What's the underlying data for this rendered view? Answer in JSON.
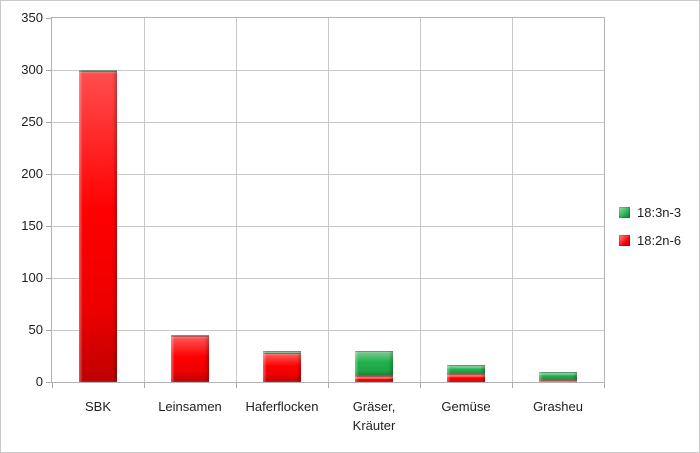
{
  "chart_data": {
    "type": "bar",
    "stacked": true,
    "categories": [
      "SBK",
      "Leinsamen",
      "Haferflocken",
      "Gräser,\nKräuter",
      "Gemüse",
      "Grasheu"
    ],
    "series": [
      {
        "name": "18:3n-3",
        "color": "#22B14C",
        "values": [
          1,
          1,
          2,
          24,
          8,
          8
        ]
      },
      {
        "name": "18:2n-6",
        "color": "#FF0000",
        "values": [
          299,
          44,
          28,
          6,
          8,
          2
        ]
      }
    ],
    "stack_order_bottom_to_top": [
      "18:2n-6",
      "18:3n-3"
    ],
    "title": "",
    "xlabel": "",
    "ylabel": "",
    "ylim": [
      0,
      350
    ],
    "yticks": [
      0,
      50,
      100,
      150,
      200,
      250,
      300,
      350
    ],
    "grid": true,
    "legend_position": "right",
    "colors": {
      "green_series": "#22B14C",
      "red_series": "#FF0000",
      "gridline": "#C9C9C9",
      "axis_line": "#B3B3B3",
      "text": "#1F1F1F",
      "background": "#FFFFFF",
      "frame_border": "#C9C9C9"
    }
  }
}
